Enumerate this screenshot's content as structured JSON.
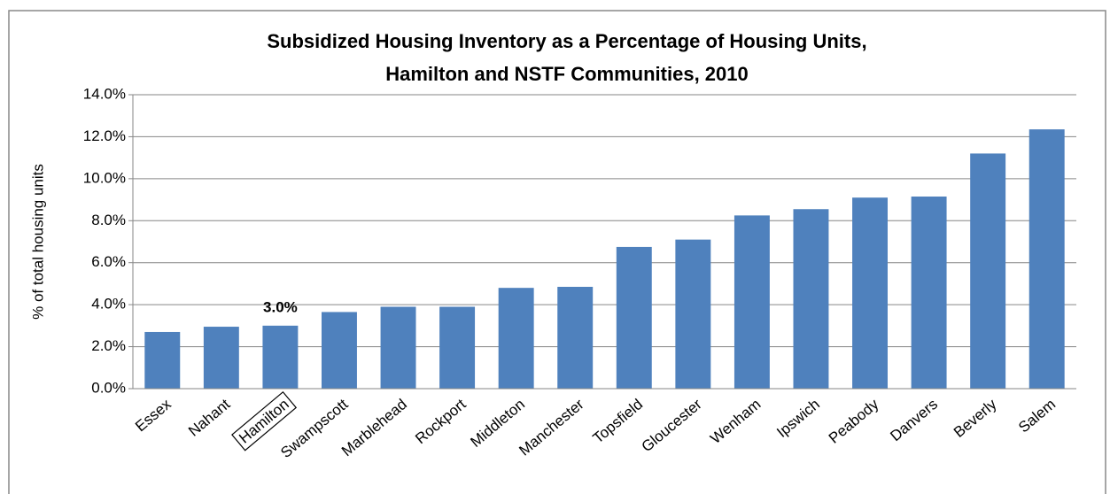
{
  "chart_data": {
    "type": "bar",
    "title": [
      "Subsidized Housing Inventory as a Percentage of Housing Units,",
      "Hamilton and NSTF Communities, 2010"
    ],
    "y_label": "% of total housing units",
    "categories": [
      "Essex",
      "Nahant",
      "Hamilton",
      "Swampscott",
      "Marblehead",
      "Rockport",
      "Middleton",
      "Manchester",
      "Topsfield",
      "Gloucester",
      "Wenham",
      "Ipswich",
      "Peabody",
      "Danvers",
      "Beverly",
      "Salem"
    ],
    "values": [
      2.7,
      2.95,
      3.0,
      3.65,
      3.9,
      3.9,
      4.8,
      4.85,
      6.75,
      7.1,
      8.25,
      8.55,
      9.1,
      9.15,
      11.2,
      12.35
    ],
    "value_labels": [
      null,
      null,
      "3.0%",
      null,
      null,
      null,
      null,
      null,
      null,
      null,
      null,
      null,
      null,
      null,
      null,
      null
    ],
    "color": "#4f81bd",
    "ylim": [
      0,
      14
    ],
    "yticks": [
      {
        "value": 0,
        "label": "0.0%"
      },
      {
        "value": 2,
        "label": "2.0%"
      },
      {
        "value": 4,
        "label": "4.0%"
      },
      {
        "value": 6,
        "label": "6.0%"
      },
      {
        "value": 8,
        "label": "8.0%"
      },
      {
        "value": 10,
        "label": "10.0%"
      },
      {
        "value": 12,
        "label": "12.0%"
      },
      {
        "value": 14,
        "label": "14.0%"
      }
    ],
    "grid": true
  }
}
